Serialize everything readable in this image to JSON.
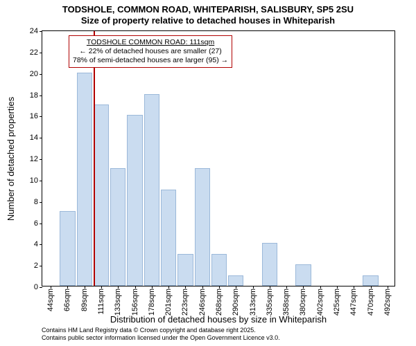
{
  "title_line1": "TODSHOLE, COMMON ROAD, WHITEPARISH, SALISBURY, SP5 2SU",
  "title_line2": "Size of property relative to detached houses in Whiteparish",
  "ylabel": "Number of detached properties",
  "xlabel": "Distribution of detached houses by size in Whiteparish",
  "credits_line1": "Contains HM Land Registry data © Crown copyright and database right 2025.",
  "credits_line2": "Contains public sector information licensed under the Open Government Licence v3.0.",
  "chart": {
    "type": "bar",
    "ylim": [
      0,
      24
    ],
    "ytick_step": 2,
    "bar_color": "#cadcf0",
    "bar_border": "#9bb8d9",
    "marker_color": "#b00000",
    "background": "#ffffff",
    "border_color": "#000000",
    "callout_border": "#b00000",
    "marker_category": "111sqm",
    "categories": [
      "44sqm",
      "66sqm",
      "89sqm",
      "111sqm",
      "133sqm",
      "156sqm",
      "178sqm",
      "201sqm",
      "223sqm",
      "246sqm",
      "268sqm",
      "290sqm",
      "313sqm",
      "335sqm",
      "358sqm",
      "380sqm",
      "402sqm",
      "425sqm",
      "447sqm",
      "470sqm",
      "492sqm"
    ],
    "values": [
      0,
      7,
      20,
      17,
      11,
      16,
      18,
      9,
      3,
      11,
      3,
      1,
      0,
      4,
      0,
      2,
      0,
      0,
      0,
      1,
      0
    ]
  },
  "callout": {
    "heading": "TODSHOLE COMMON ROAD: 111sqm",
    "line2_prefix": "← ",
    "line2": "22% of detached houses are smaller (27)",
    "line3": "78% of semi-detached houses are larger (95)",
    "line3_suffix": " →"
  },
  "fonts": {
    "title_fontsize": 13,
    "axis_label_fontsize": 13,
    "tick_fontsize": 11,
    "callout_fontsize": 10.5,
    "credits_fontsize": 9
  }
}
